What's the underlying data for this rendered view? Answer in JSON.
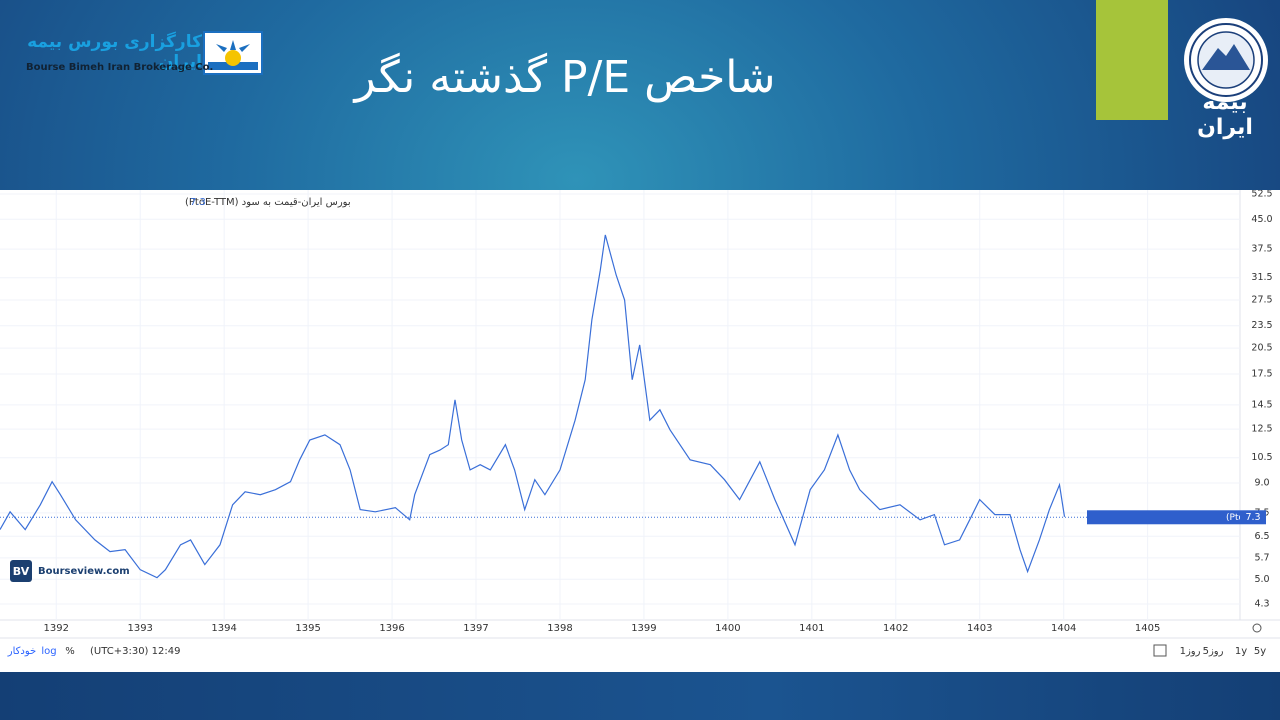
{
  "header": {
    "title": "شاخص P/E گذشته نگر",
    "brand_fa": "کارگزاری بورس بیمه ایران",
    "brand_en": "Bourse Bimeh Iran Brokerage Co.",
    "insurer": "بیمه ایران"
  },
  "watermark": {
    "logo": "BV",
    "site": "Bourseview.com"
  },
  "toolbar": {
    "ranges": [
      "5y",
      "1y",
      "5روز",
      "1روز"
    ],
    "time": "(UTC+3:30) 12:49",
    "options": [
      "%",
      "log",
      "خودکار"
    ]
  },
  "chart_data": {
    "type": "line",
    "log_scale": true,
    "grid": true,
    "series": [
      {
        "name": "بورس ایران-قیمت به سود (PtoE-TTM)",
        "color": "#3a6fd8",
        "x": [
          1391.33,
          1391.45,
          1391.63,
          1391.81,
          1391.95,
          1392.05,
          1392.23,
          1392.46,
          1392.64,
          1392.82,
          1393.0,
          1393.2,
          1393.3,
          1393.48,
          1393.6,
          1393.77,
          1393.95,
          1394.1,
          1394.25,
          1394.43,
          1394.61,
          1394.79,
          1394.9,
          1395.02,
          1395.2,
          1395.38,
          1395.5,
          1395.62,
          1395.8,
          1396.04,
          1396.21,
          1396.27,
          1396.45,
          1396.57,
          1396.67,
          1396.75,
          1396.83,
          1396.93,
          1397.05,
          1397.17,
          1397.35,
          1397.46,
          1397.58,
          1397.7,
          1397.82,
          1398.0,
          1398.18,
          1398.3,
          1398.38,
          1398.48,
          1398.54,
          1398.67,
          1398.77,
          1398.86,
          1398.95,
          1399.07,
          1399.19,
          1399.31,
          1399.55,
          1399.79,
          1399.96,
          1400.14,
          1400.38,
          1400.56,
          1400.8,
          1400.98,
          1401.15,
          1401.31,
          1401.45,
          1401.57,
          1401.81,
          1402.05,
          1402.29,
          1402.46,
          1402.58,
          1402.76,
          1402.88,
          1403.0,
          1403.18,
          1403.36,
          1403.48,
          1403.57,
          1403.71,
          1403.83,
          1403.95,
          1404.01
        ],
        "values": [
          6.77,
          7.55,
          6.77,
          7.88,
          9.07,
          8.38,
          7.19,
          6.36,
          5.92,
          5.99,
          5.3,
          5.05,
          5.3,
          6.17,
          6.36,
          5.47,
          6.17,
          7.88,
          8.53,
          8.38,
          8.64,
          9.07,
          10.37,
          11.7,
          12.07,
          11.37,
          9.75,
          7.65,
          7.55,
          7.74,
          7.19,
          8.38,
          10.7,
          11.0,
          11.37,
          14.95,
          11.7,
          9.75,
          10.06,
          9.75,
          11.37,
          9.75,
          7.65,
          9.18,
          8.38,
          9.75,
          13.2,
          16.9,
          24.4,
          33.0,
          40.9,
          32.0,
          27.5,
          16.9,
          20.9,
          13.2,
          14.07,
          12.45,
          10.37,
          10.06,
          9.18,
          8.13,
          10.24,
          8.13,
          6.17,
          8.64,
          9.75,
          12.07,
          9.75,
          8.64,
          7.65,
          7.88,
          7.19,
          7.42,
          6.17,
          6.36,
          7.19,
          8.13,
          7.42,
          7.42,
          5.99,
          5.24,
          6.36,
          7.65,
          8.9,
          7.32
        ]
      }
    ],
    "last_value": 7.3,
    "xlim": [
      1391.33,
      1406.1
    ],
    "xticks": [
      1392,
      1393,
      1394,
      1395,
      1396,
      1397,
      1398,
      1399,
      1400,
      1401,
      1402,
      1403,
      1404,
      1405
    ],
    "ylim": [
      3.9,
      53.8
    ],
    "yticks": [
      52.5,
      {
        "value": 45,
        "label": "45.0"
      },
      37.5,
      31.5,
      27.5,
      23.5,
      20.5,
      17.5,
      14.5,
      12.5,
      10.5,
      {
        "value": 9,
        "label": "9.0"
      },
      7.5,
      6.5,
      5.7,
      {
        "value": 5,
        "label": "5.0"
      },
      4.3
    ]
  }
}
